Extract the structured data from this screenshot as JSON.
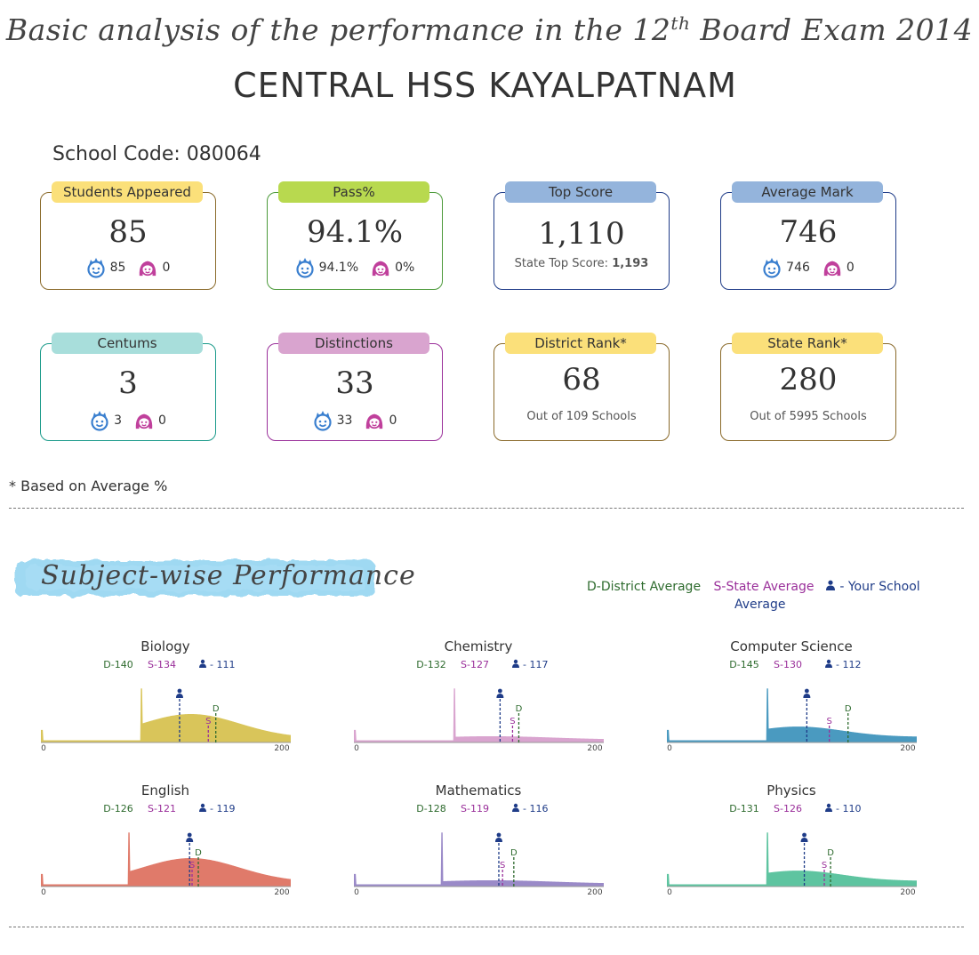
{
  "header": {
    "title_pre": "Basic analysis of the performance in the 12",
    "title_sup": "th",
    "title_post": " Board Exam 2014",
    "school_name": "CENTRAL HSS KAYALPATNAM",
    "school_code": "School Code: 080064"
  },
  "colors": {
    "yellow": "#fbe07a",
    "green": "#b8d94f",
    "blue": "#94b4dc",
    "teal": "#a8dedb",
    "pink": "#d9a4cf",
    "boy": "#3a7fcf",
    "girl": "#c0409c"
  },
  "cards": [
    {
      "label": "Students Appeared",
      "value": "85",
      "boys": "85",
      "girls": "0",
      "color": "#fbe07a",
      "border": "#8a6a2a"
    },
    {
      "label": "Pass%",
      "value": "94.1%",
      "boys": "94.1%",
      "girls": "0%",
      "color": "#b8d94f",
      "border": "#4c9a3a"
    },
    {
      "label": "Top Score",
      "value": "1,110",
      "sub_text": "State Top Score: ",
      "sub_bold": "1,193",
      "color": "#94b4dc",
      "border": "#1f3c88"
    },
    {
      "label": "Average Mark",
      "value": "746",
      "boys": "746",
      "girls": "0",
      "color": "#94b4dc",
      "border": "#1f3c88"
    },
    {
      "label": "Centums",
      "value": "3",
      "boys": "3",
      "girls": "0",
      "color": "#a8dedb",
      "border": "#1a9a8a"
    },
    {
      "label": "Distinctions",
      "value": "33",
      "boys": "33",
      "girls": "0",
      "color": "#d9a4cf",
      "border": "#9a2f9a"
    },
    {
      "label": "District Rank*",
      "value": "68",
      "sub_text": "Out of 109 Schools",
      "color": "#fbe07a",
      "border": "#8a6a2a"
    },
    {
      "label": "State Rank*",
      "value": "280",
      "sub_text": "Out of 5995 Schools",
      "color": "#fbe07a",
      "border": "#8a6a2a"
    }
  ],
  "footnote": "* Based on Average %",
  "section_title": "Subject-wise Performance",
  "legend": {
    "district": "D-District Average",
    "state": "S-State Average",
    "school_a": "- Your School",
    "school_b": "Average"
  },
  "chart_data": [
    {
      "type": "area",
      "title": "Biology",
      "district": 140,
      "state": 134,
      "school": 111,
      "xlim": [
        0,
        200
      ],
      "xticks": [
        "0",
        "200"
      ],
      "color": "#d9c55a",
      "spike_x": 80,
      "shape": "hump",
      "stats_text": {
        "d": "D-140",
        "s": "S-134",
        "y": "- 111"
      }
    },
    {
      "type": "area",
      "title": "Chemistry",
      "district": 132,
      "state": 127,
      "school": 117,
      "xlim": [
        0,
        200
      ],
      "xticks": [
        "0",
        "200"
      ],
      "color": "#d9a4cf",
      "spike_x": 80,
      "shape": "flat",
      "stats_text": {
        "d": "D-132",
        "s": "S-127",
        "y": "- 117"
      }
    },
    {
      "type": "area",
      "title": "Computer Science",
      "district": 145,
      "state": 130,
      "school": 112,
      "xlim": [
        0,
        200
      ],
      "xticks": [
        "0",
        "200"
      ],
      "color": "#4a9ac0",
      "spike_x": 80,
      "shape": "wide",
      "stats_text": {
        "d": "D-145",
        "s": "S-130",
        "y": "- 112"
      }
    },
    {
      "type": "area",
      "title": "English",
      "district": 126,
      "state": 121,
      "school": 119,
      "xlim": [
        0,
        200
      ],
      "xticks": [
        "0",
        "200"
      ],
      "color": "#e07a6a",
      "spike_x": 70,
      "shape": "hump",
      "stats_text": {
        "d": "D-126",
        "s": "S-121",
        "y": "- 119"
      }
    },
    {
      "type": "area",
      "title": "Mathematics",
      "district": 128,
      "state": 119,
      "school": 116,
      "xlim": [
        0,
        200
      ],
      "xticks": [
        "0",
        "200"
      ],
      "color": "#9a8ac8",
      "spike_x": 70,
      "shape": "flat",
      "stats_text": {
        "d": "D-128",
        "s": "S-119",
        "y": "- 116"
      }
    },
    {
      "type": "area",
      "title": "Physics",
      "district": 131,
      "state": 126,
      "school": 110,
      "xlim": [
        0,
        200
      ],
      "xticks": [
        "0",
        "200"
      ],
      "color": "#5ec4a0",
      "spike_x": 80,
      "shape": "wide",
      "stats_text": {
        "d": "D-131",
        "s": "S-126",
        "y": "- 110"
      }
    }
  ]
}
